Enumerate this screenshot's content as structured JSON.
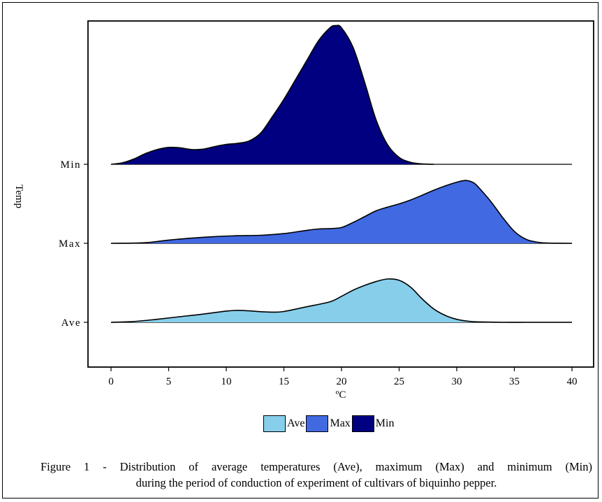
{
  "chart_data": {
    "type": "ridgeline",
    "xlabel": "ºC",
    "ylabel": "Temp",
    "xlim": [
      -2,
      41
    ],
    "x_ticks": [
      0,
      5,
      10,
      15,
      20,
      25,
      30,
      35,
      40
    ],
    "categories": [
      "Ave",
      "Max",
      "Min"
    ],
    "legend_position": "bottom",
    "grid": false,
    "series": [
      {
        "name": "Ave",
        "color": "#87ceeb",
        "x": [
          0,
          2,
          4,
          6,
          8,
          10,
          11,
          12,
          13,
          14,
          15,
          17,
          19,
          20,
          21,
          22,
          23,
          24,
          25,
          26,
          27,
          28,
          29,
          30,
          31,
          32,
          34,
          36,
          38,
          40
        ],
        "density": [
          0.0,
          0.04,
          0.14,
          0.26,
          0.38,
          0.52,
          0.55,
          0.53,
          0.49,
          0.47,
          0.5,
          0.72,
          0.95,
          1.2,
          1.48,
          1.7,
          1.88,
          2.0,
          1.94,
          1.62,
          1.08,
          0.62,
          0.32,
          0.14,
          0.05,
          0.02,
          0.0,
          0.0,
          0.0,
          0.0
        ]
      },
      {
        "name": "Max",
        "color": "#4169e1",
        "x": [
          0,
          2,
          3.5,
          5,
          7,
          9,
          11,
          13,
          15,
          17,
          18,
          19,
          20,
          21,
          22,
          23,
          24,
          25,
          26,
          27,
          28,
          29,
          30,
          30.8,
          31.5,
          32,
          33,
          34,
          35,
          36,
          37,
          38,
          40
        ],
        "density": [
          0.0,
          0.01,
          0.05,
          0.15,
          0.24,
          0.31,
          0.35,
          0.37,
          0.45,
          0.6,
          0.66,
          0.68,
          0.73,
          0.96,
          1.23,
          1.5,
          1.67,
          1.82,
          2.0,
          2.22,
          2.45,
          2.65,
          2.82,
          2.9,
          2.78,
          2.52,
          1.9,
          1.18,
          0.55,
          0.19,
          0.05,
          0.01,
          0.0
        ]
      },
      {
        "name": "Min",
        "color": "#000080",
        "x": [
          0,
          1,
          2,
          3,
          4,
          5,
          6,
          7,
          8,
          9,
          10,
          11,
          12,
          13,
          14,
          15,
          16,
          17,
          18,
          19,
          19.5,
          20,
          21,
          22,
          23,
          24,
          25,
          26,
          27,
          28
        ],
        "density": [
          0.0,
          0.07,
          0.25,
          0.5,
          0.68,
          0.78,
          0.76,
          0.68,
          0.7,
          0.82,
          0.92,
          0.97,
          1.08,
          1.45,
          2.2,
          3.0,
          3.9,
          4.8,
          5.7,
          6.3,
          6.4,
          6.3,
          5.4,
          3.8,
          2.05,
          0.9,
          0.32,
          0.09,
          0.02,
          0.0
        ]
      }
    ]
  },
  "legend": [
    {
      "label": "Ave",
      "color": "#87ceeb"
    },
    {
      "label": "Max",
      "color": "#4169e1"
    },
    {
      "label": "Min",
      "color": "#000080"
    }
  ],
  "caption": {
    "line1": "Figure 1 - Distribution of average temperatures (Ave), maximum (Max) and minimum (Min)",
    "line2": "during the period of conduction of experiment of cultivars of biquinho pepper."
  }
}
